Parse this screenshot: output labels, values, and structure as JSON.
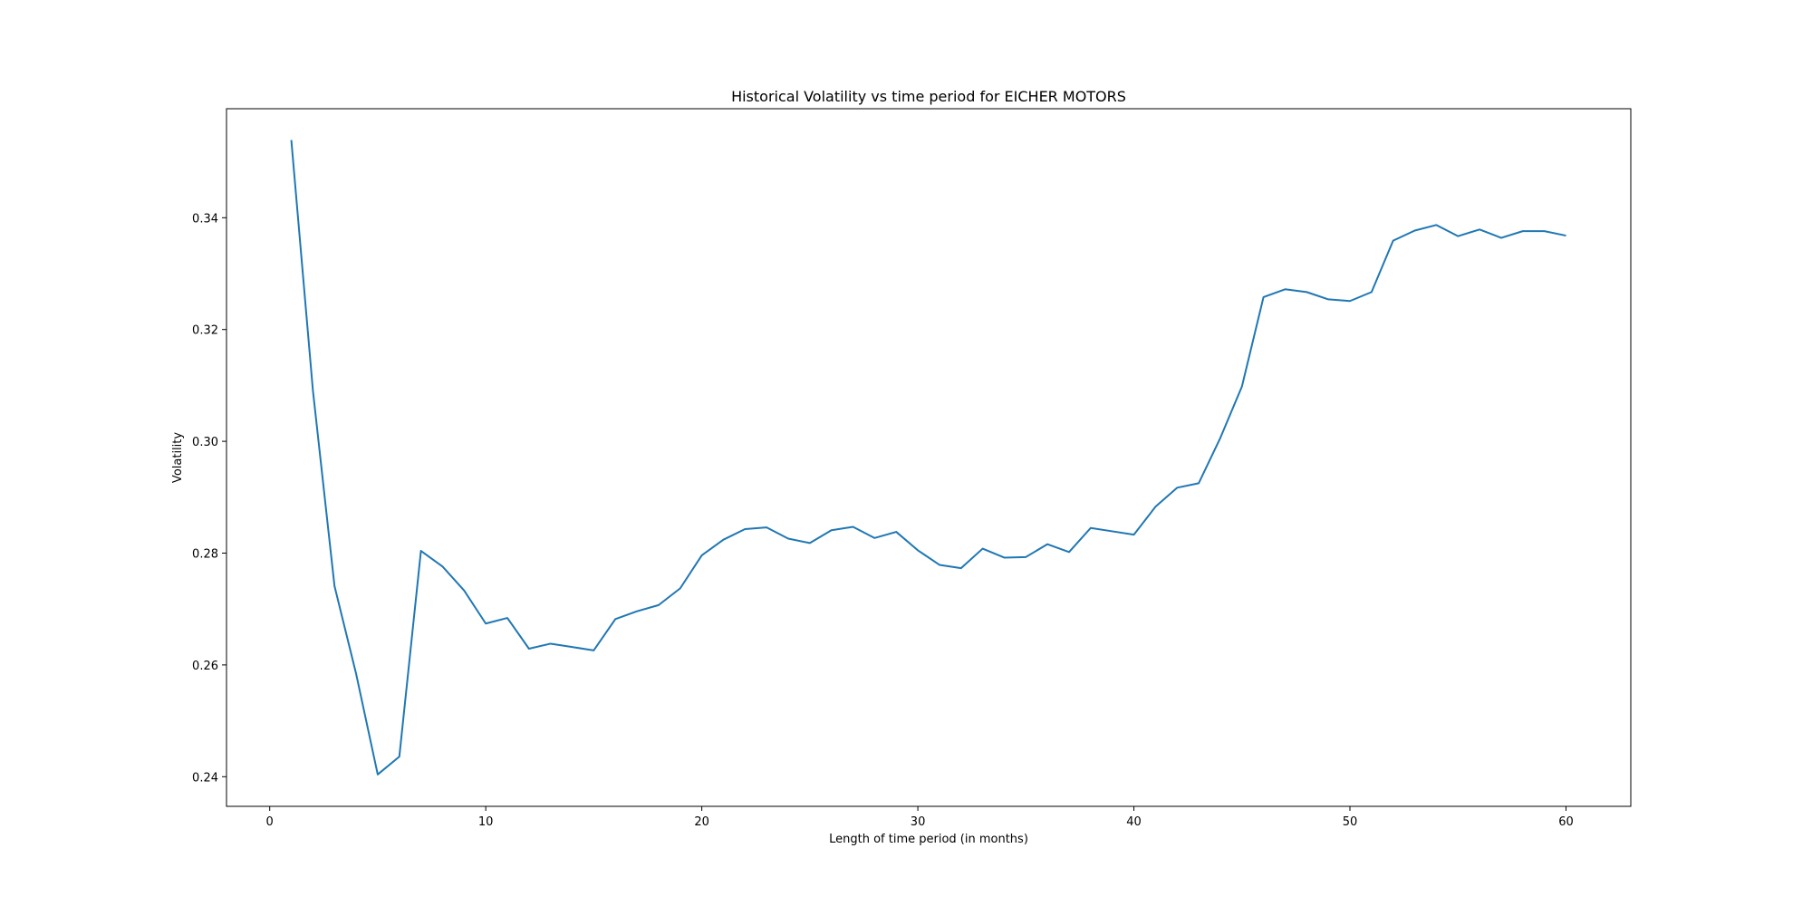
{
  "chart_data": {
    "type": "line",
    "title": "Historical Volatility vs time period for EICHER MOTORS",
    "xlabel": "Length of time period (in months)",
    "ylabel": "Volatility",
    "xlim": [
      -2,
      63
    ],
    "ylim": [
      0.2347,
      0.3595
    ],
    "x_ticks": [
      0,
      10,
      20,
      30,
      40,
      50,
      60
    ],
    "y_ticks": [
      0.24,
      0.26,
      0.28,
      0.3,
      0.32,
      0.34
    ],
    "y_tick_labels": [
      "0.24",
      "0.26",
      "0.28",
      "0.30",
      "0.32",
      "0.34"
    ],
    "grid": false,
    "line_color": "#1f77b4",
    "series": [
      {
        "x": [
          1,
          2,
          3,
          4,
          5,
          6,
          7,
          8,
          9,
          10,
          11,
          12,
          13,
          14,
          15,
          16,
          17,
          18,
          19,
          20,
          21,
          22,
          23,
          24,
          25,
          26,
          27,
          28,
          29,
          30,
          31,
          32,
          33,
          34,
          35,
          36,
          37,
          38,
          39,
          40,
          41,
          42,
          43,
          44,
          45,
          46,
          47,
          48,
          49,
          50,
          51,
          52,
          53,
          54,
          55,
          56,
          57,
          58,
          59,
          60
        ],
        "values": [
          0.3539,
          0.3091,
          0.2741,
          0.2584,
          0.2404,
          0.2436,
          0.2804,
          0.2776,
          0.2733,
          0.2674,
          0.2684,
          0.2629,
          0.2638,
          0.2632,
          0.2626,
          0.2682,
          0.2696,
          0.2707,
          0.2737,
          0.2796,
          0.2824,
          0.2843,
          0.2846,
          0.2826,
          0.2818,
          0.2841,
          0.2847,
          0.2827,
          0.2838,
          0.2805,
          0.2779,
          0.2773,
          0.2808,
          0.2792,
          0.2793,
          0.2816,
          0.2802,
          0.2845,
          0.2839,
          0.2833,
          0.2883,
          0.2917,
          0.2925,
          0.3006,
          0.3098,
          0.3258,
          0.3272,
          0.3267,
          0.3254,
          0.3251,
          0.3267,
          0.3359,
          0.3377,
          0.3387,
          0.3367,
          0.3379,
          0.3364,
          0.3376,
          0.3376,
          0.3368
        ]
      }
    ]
  }
}
